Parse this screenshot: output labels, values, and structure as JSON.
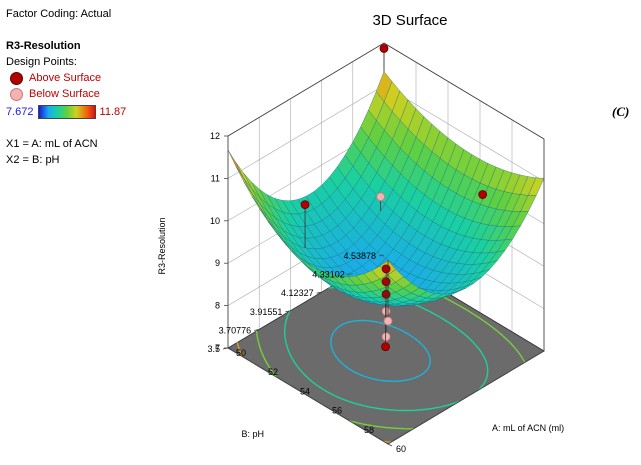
{
  "header": {
    "factor_coding": "Factor Coding: Actual",
    "response_name": "R3-Resolution",
    "design_points_label": "Design Points:",
    "above_label": "Above Surface",
    "below_label": "Below Surface",
    "scale_min": "7.672",
    "scale_max": "11.87",
    "x1_def": "X1 = A: mL of ACN",
    "x2_def": "X2 = B: pH"
  },
  "panel_tag": "(C)",
  "chart_data": {
    "type": "surface",
    "title": "3D Surface",
    "xlabel": "A: mL of ACN (ml)",
    "ylabel": "B: pH",
    "zlabel": "R3-Resolution",
    "x_ticks": [
      "50",
      "52",
      "54",
      "56",
      "58",
      "60"
    ],
    "y_ticks": [
      "3.5",
      "3.70776",
      "3.91551",
      "4.12327",
      "4.33102",
      "4.53878"
    ],
    "z_ticks": [
      "7",
      "8",
      "9",
      "10",
      "11",
      "12"
    ],
    "xlim": [
      50,
      60
    ],
    "ylim": [
      3.5,
      4.53878
    ],
    "zlim": [
      7,
      12
    ],
    "color_range": [
      7.672,
      11.87
    ],
    "design_points": [
      {
        "x": 50,
        "y": 4.53878,
        "z": 11.87,
        "type": "above"
      },
      {
        "x": 52.5,
        "y": 4.25,
        "z": 9.55,
        "type": "below"
      },
      {
        "x": 55,
        "y": 4.02,
        "z": 8.9,
        "type": "above"
      },
      {
        "x": 55,
        "y": 4.02,
        "z": 8.6,
        "type": "above"
      },
      {
        "x": 55,
        "y": 4.02,
        "z": 8.3,
        "type": "above"
      },
      {
        "x": 55,
        "y": 4.02,
        "z": 7.9,
        "type": "below"
      },
      {
        "x": 55,
        "y": 4.02,
        "z": 7.3,
        "type": "below"
      },
      {
        "x": 57.5,
        "y": 3.75,
        "z": 8.2,
        "type": "above"
      },
      {
        "x": 60,
        "y": 3.5,
        "z": 9.9,
        "type": "below"
      },
      {
        "x": 57,
        "y": 4.45,
        "z": 10.2,
        "type": "above"
      },
      {
        "x": 52,
        "y": 3.8,
        "z": 10.2,
        "type": "above"
      }
    ]
  }
}
